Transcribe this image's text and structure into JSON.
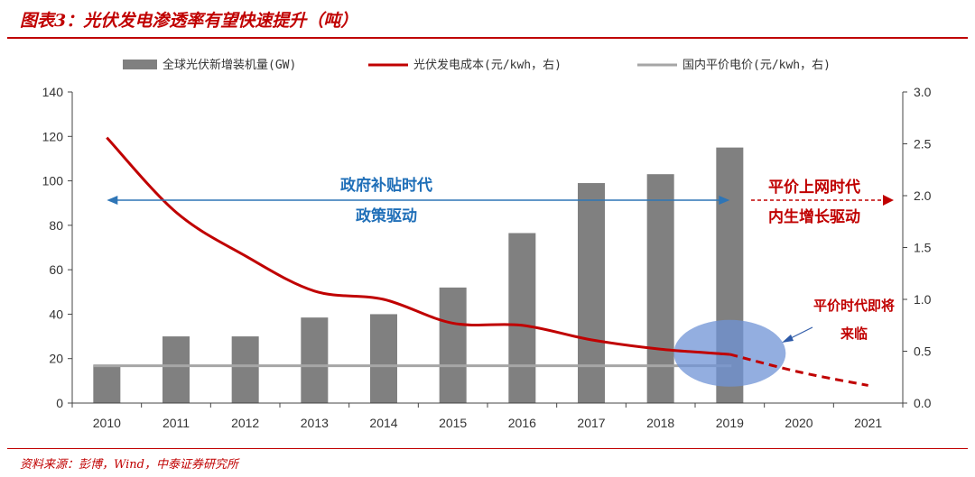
{
  "header": {
    "title": "图表3：光伏发电渗透率有望快速提升（吨）"
  },
  "footer": {
    "source": "资料来源：彭博，Wind，中泰证券研究所"
  },
  "colors": {
    "bar": "#808080",
    "cost_line": "#c00000",
    "price_line": "#a6a6a6",
    "bubble": "#6f93d6",
    "blue_arrow": "#2e75b6",
    "accent": "#c00000"
  },
  "chart_data": {
    "type": "bar",
    "categories": [
      "2010",
      "2011",
      "2012",
      "2013",
      "2014",
      "2015",
      "2016",
      "2017",
      "2018",
      "2019",
      "2020",
      "2021"
    ],
    "series": [
      {
        "name": "全球光伏新增装机量(GW)",
        "type": "bar",
        "axis": "left",
        "values": [
          17,
          30,
          30,
          38.5,
          40,
          52,
          76.5,
          99,
          103,
          115,
          null,
          null
        ]
      },
      {
        "name": "光伏发电成本(元/kwh，右)",
        "type": "line",
        "axis": "right",
        "values": [
          2.56,
          1.84,
          1.42,
          1.08,
          1.0,
          0.77,
          0.75,
          0.61,
          0.52,
          0.47,
          0.3,
          0.17
        ],
        "dashed_from": "2019"
      },
      {
        "name": "国内平价电价(元/kwh，右)",
        "type": "line",
        "axis": "right",
        "values": [
          0.36,
          0.36,
          0.36,
          0.36,
          0.36,
          0.36,
          0.36,
          0.36,
          0.36,
          0.36,
          null,
          null
        ]
      }
    ],
    "y_left": {
      "min": 0,
      "max": 140,
      "ticks": [
        0,
        20,
        40,
        60,
        80,
        100,
        120,
        140
      ]
    },
    "y_right": {
      "min": 0,
      "max": 3.0,
      "ticks": [
        "0.0",
        "0.5",
        "1.0",
        "1.5",
        "2.0",
        "2.5",
        "3.0"
      ]
    },
    "legend": {
      "placement": "top"
    },
    "grid": false,
    "annotations": {
      "subsidy_era_line1": "政府补贴时代",
      "subsidy_era_line2": "政策驱动",
      "parity_era_line1": "平价上网时代",
      "parity_era_line2": "内生增长驱动",
      "parity_coming_line1": "平价时代即将",
      "parity_coming_line2": "来临"
    }
  }
}
